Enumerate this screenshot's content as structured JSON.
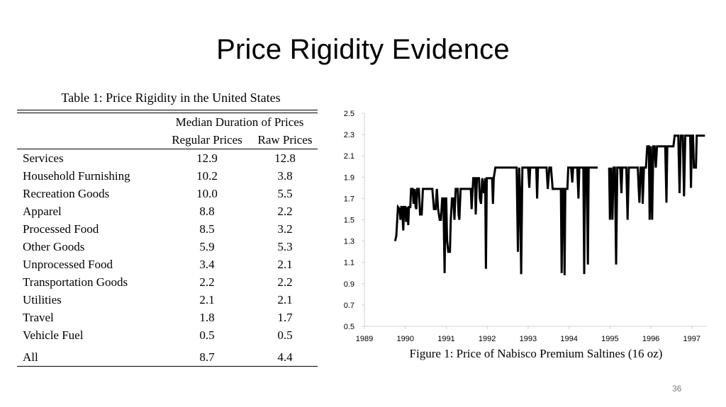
{
  "slide": {
    "title": "Price Rigidity Evidence",
    "page_number": "36"
  },
  "table": {
    "caption": "Table 1: Price Rigidity in the United States",
    "group_header": "Median Duration of Prices",
    "col_headers": [
      "Regular Prices",
      "Raw Prices"
    ],
    "rows": [
      {
        "label": "Services",
        "regular": "12.9",
        "raw": "12.8"
      },
      {
        "label": "Household Furnishing",
        "regular": "10.2",
        "raw": "3.8"
      },
      {
        "label": "Recreation Goods",
        "regular": "10.0",
        "raw": "5.5"
      },
      {
        "label": "Apparel",
        "regular": "8.8",
        "raw": "2.2"
      },
      {
        "label": "Processed Food",
        "regular": "8.5",
        "raw": "3.2"
      },
      {
        "label": "Other Goods",
        "regular": "5.9",
        "raw": "5.3"
      },
      {
        "label": "Unprocessed Food",
        "regular": "3.4",
        "raw": "2.1"
      },
      {
        "label": "Transportation Goods",
        "regular": "2.2",
        "raw": "2.2"
      },
      {
        "label": "Utilities",
        "regular": "2.1",
        "raw": "2.1"
      },
      {
        "label": "Travel",
        "regular": "1.8",
        "raw": "1.7"
      },
      {
        "label": "Vehicle Fuel",
        "regular": "0.5",
        "raw": "0.5"
      }
    ],
    "total": {
      "label": "All",
      "regular": "8.7",
      "raw": "4.4"
    }
  },
  "chart_data": {
    "type": "line",
    "title": "Figure 1: Price of Nabisco Premium Saltines (16 oz)",
    "xlabel": "",
    "ylabel": "",
    "xlim": [
      1989,
      1997.35
    ],
    "ylim": [
      0.5,
      2.5
    ],
    "x_ticks": [
      "1989",
      "1990",
      "1991",
      "1992",
      "1993",
      "1994",
      "1995",
      "1996",
      "1997"
    ],
    "y_ticks": [
      "0.5",
      "0.7",
      "0.9",
      "1.1",
      "1.3",
      "1.5",
      "1.7",
      "1.9",
      "2.1",
      "2.3",
      "2.5"
    ],
    "grid": false,
    "series": [
      {
        "color": "#000000",
        "segments": [
          [
            [
              1989.75,
              1.3
            ],
            [
              1989.78,
              1.35
            ],
            [
              1989.82,
              1.62
            ],
            [
              1989.86,
              1.6
            ],
            [
              1989.88,
              1.5
            ],
            [
              1989.9,
              1.62
            ],
            [
              1989.92,
              1.62
            ],
            [
              1989.95,
              1.4
            ],
            [
              1989.97,
              1.62
            ],
            [
              1990.0,
              1.62
            ],
            [
              1990.02,
              1.48
            ],
            [
              1990.05,
              1.62
            ],
            [
              1990.07,
              1.45
            ],
            [
              1990.09,
              1.62
            ],
            [
              1990.12,
              1.62
            ],
            [
              1990.14,
              1.79
            ],
            [
              1990.18,
              1.79
            ],
            [
              1990.2,
              1.65
            ],
            [
              1990.23,
              1.79
            ],
            [
              1990.25,
              1.62
            ],
            [
              1990.27,
              1.6
            ],
            [
              1990.29,
              1.79
            ],
            [
              1990.33,
              1.79
            ],
            [
              1990.36,
              1.55
            ],
            [
              1990.4,
              1.55
            ],
            [
              1990.43,
              1.79
            ],
            [
              1990.66,
              1.79
            ],
            [
              1990.7,
              1.6
            ],
            [
              1990.74,
              1.6
            ],
            [
              1990.77,
              1.79
            ],
            [
              1990.8,
              1.6
            ],
            [
              1990.84,
              1.5
            ],
            [
              1990.87,
              1.5
            ],
            [
              1990.9,
              1.7
            ],
            [
              1990.93,
              1.7
            ],
            [
              1990.96,
              1.0
            ],
            [
              1990.98,
              1.7
            ],
            [
              1991.0,
              1.7
            ],
            [
              1991.02,
              1.3
            ],
            [
              1991.05,
              1.2
            ],
            [
              1991.09,
              1.2
            ],
            [
              1991.11,
              1.5
            ],
            [
              1991.14,
              1.7
            ],
            [
              1991.17,
              1.7
            ],
            [
              1991.2,
              1.5
            ],
            [
              1991.23,
              1.79
            ],
            [
              1991.28,
              1.79
            ],
            [
              1991.3,
              1.55
            ],
            [
              1991.32,
              1.5
            ],
            [
              1991.35,
              1.79
            ],
            [
              1991.6,
              1.79
            ],
            [
              1991.62,
              1.6
            ],
            [
              1991.66,
              1.89
            ],
            [
              1991.7,
              1.89
            ],
            [
              1991.72,
              1.55
            ],
            [
              1991.75,
              1.89
            ],
            [
              1991.8,
              1.89
            ],
            [
              1991.82,
              1.7
            ],
            [
              1991.85,
              1.65
            ],
            [
              1991.88,
              1.89
            ],
            [
              1991.92,
              1.75
            ],
            [
              1991.95,
              1.89
            ],
            [
              1991.97,
              1.04
            ],
            [
              1991.99,
              1.89
            ],
            [
              1992.12,
              1.89
            ],
            [
              1992.14,
              1.65
            ],
            [
              1992.16,
              1.89
            ],
            [
              1992.2,
              1.99
            ],
            [
              1992.72,
              1.99
            ],
            [
              1992.75,
              1.2
            ],
            [
              1992.78,
              1.99
            ],
            [
              1992.8,
              1.8
            ],
            [
              1992.83,
              0.99
            ],
            [
              1992.86,
              1.99
            ],
            [
              1993.0,
              1.99
            ],
            [
              1993.03,
              1.8
            ],
            [
              1993.05,
              1.99
            ],
            [
              1993.2,
              1.99
            ],
            [
              1993.22,
              1.7
            ],
            [
              1993.24,
              1.99
            ],
            [
              1993.45,
              1.99
            ],
            [
              1993.48,
              1.79
            ],
            [
              1993.52,
              1.99
            ],
            [
              1993.56,
              1.99
            ],
            [
              1993.6,
              1.79
            ],
            [
              1993.8,
              1.79
            ],
            [
              1993.82,
              1.0
            ],
            [
              1993.84,
              1.79
            ],
            [
              1993.87,
              1.79
            ],
            [
              1993.89,
              0.98
            ],
            [
              1993.91,
              1.79
            ],
            [
              1993.96,
              1.79
            ],
            [
              1993.98,
              1.99
            ],
            [
              1994.05,
              1.99
            ],
            [
              1994.08,
              1.85
            ],
            [
              1994.1,
              1.99
            ],
            [
              1994.2,
              1.99
            ],
            [
              1994.23,
              1.7
            ],
            [
              1994.25,
              1.99
            ],
            [
              1994.35,
              1.99
            ],
            [
              1994.37,
              0.99
            ],
            [
              1994.39,
              1.99
            ],
            [
              1994.43,
              1.99
            ],
            [
              1994.46,
              1.08
            ],
            [
              1994.48,
              1.99
            ],
            [
              1994.7,
              1.99
            ]
          ],
          [
            [
              1994.98,
              1.99
            ],
            [
              1995.0,
              1.5
            ],
            [
              1995.03,
              1.99
            ],
            [
              1995.06,
              1.5
            ],
            [
              1995.09,
              1.99
            ],
            [
              1995.12,
              1.99
            ],
            [
              1995.15,
              1.08
            ],
            [
              1995.18,
              1.99
            ],
            [
              1995.25,
              1.99
            ],
            [
              1995.28,
              1.75
            ],
            [
              1995.3,
              1.99
            ],
            [
              1995.4,
              1.99
            ],
            [
              1995.43,
              1.5
            ],
            [
              1995.46,
              1.99
            ],
            [
              1995.68,
              1.99
            ],
            [
              1995.7,
              1.8
            ],
            [
              1995.72,
              1.66
            ],
            [
              1995.75,
              1.99
            ],
            [
              1995.78,
              1.99
            ],
            [
              1995.8,
              1.65
            ],
            [
              1995.83,
              1.99
            ],
            [
              1995.88,
              1.99
            ],
            [
              1995.91,
              2.19
            ],
            [
              1995.95,
              2.19
            ],
            [
              1995.97,
              1.5
            ],
            [
              1996.0,
              2.19
            ],
            [
              1996.03,
              1.5
            ],
            [
              1996.06,
              2.19
            ],
            [
              1996.09,
              2.19
            ],
            [
              1996.12,
              1.99
            ],
            [
              1996.15,
              2.19
            ],
            [
              1996.35,
              2.19
            ],
            [
              1996.38,
              1.66
            ],
            [
              1996.4,
              2.19
            ],
            [
              1996.55,
              2.19
            ],
            [
              1996.58,
              2.29
            ],
            [
              1996.67,
              2.29
            ],
            [
              1996.7,
              1.75
            ],
            [
              1996.73,
              2.29
            ],
            [
              1996.78,
              2.29
            ],
            [
              1996.81,
              1.72
            ],
            [
              1996.84,
              2.29
            ],
            [
              1996.96,
              2.29
            ],
            [
              1996.98,
              1.8
            ],
            [
              1997.0,
              2.29
            ],
            [
              1997.03,
              2.29
            ],
            [
              1997.05,
              1.99
            ],
            [
              1997.1,
              1.99
            ],
            [
              1997.12,
              2.29
            ],
            [
              1997.32,
              2.29
            ]
          ]
        ]
      }
    ]
  }
}
